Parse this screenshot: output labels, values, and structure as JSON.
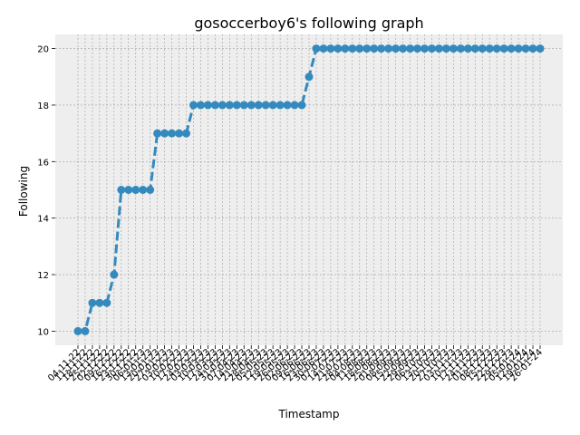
{
  "chart_data": {
    "type": "line",
    "title": "gosoccerboy6's following graph",
    "xlabel": "Timestamp",
    "ylabel": "Following",
    "ylim": [
      9.5,
      20.5
    ],
    "yticks": [
      10,
      12,
      14,
      16,
      18,
      20
    ],
    "grid": true,
    "colors": {
      "line": "#348ABD",
      "background": "#EEEEEE",
      "grid": "#A0A0A0"
    },
    "x": [
      "04-11-22",
      "11-11-22",
      "18-11-22",
      "25-11-22",
      "02-12-22",
      "09-12-22",
      "16-12-22",
      "23-12-22",
      "30-12-22",
      "06-01-23",
      "13-01-23",
      "20-01-23",
      "27-01-23",
      "03-02-23",
      "10-02-23",
      "17-02-23",
      "24-02-23",
      "03-03-23",
      "10-03-23",
      "17-03-23",
      "24-03-23",
      "31-03-23",
      "07-04-23",
      "14-04-23",
      "21-04-23",
      "28-04-23",
      "05-05-23",
      "12-05-23",
      "19-05-23",
      "26-05-23",
      "02-06-23",
      "09-06-23",
      "16-06-23",
      "23-06-23",
      "30-06-23",
      "07-07-23",
      "14-07-23",
      "21-07-23",
      "28-07-23",
      "04-08-23",
      "11-08-23",
      "18-08-23",
      "25-08-23",
      "01-09-23",
      "08-09-23",
      "15-09-23",
      "22-09-23",
      "29-09-23",
      "06-10-23",
      "13-10-23",
      "20-10-23",
      "27-10-23",
      "03-11-23",
      "10-11-23",
      "17-11-23",
      "24-11-23",
      "01-12-23",
      "08-12-23",
      "15-12-23",
      "22-12-23",
      "29-12-23",
      "05-01-24",
      "12-01-24",
      "19-01-24",
      "26-01-24"
    ],
    "series": [
      {
        "values": [
          10,
          10,
          11,
          11,
          11,
          12,
          15,
          15,
          15,
          15,
          15,
          17,
          17,
          17,
          17,
          17,
          18,
          18,
          18,
          18,
          18,
          18,
          18,
          18,
          18,
          18,
          18,
          18,
          18,
          18,
          18,
          18,
          19,
          20,
          20,
          20,
          20,
          20,
          20,
          20,
          20,
          20,
          20,
          20,
          20,
          20,
          20,
          20,
          20,
          20,
          20,
          20,
          20,
          20,
          20,
          20,
          20,
          20,
          20,
          20,
          20,
          20,
          20,
          20,
          20
        ]
      }
    ]
  }
}
